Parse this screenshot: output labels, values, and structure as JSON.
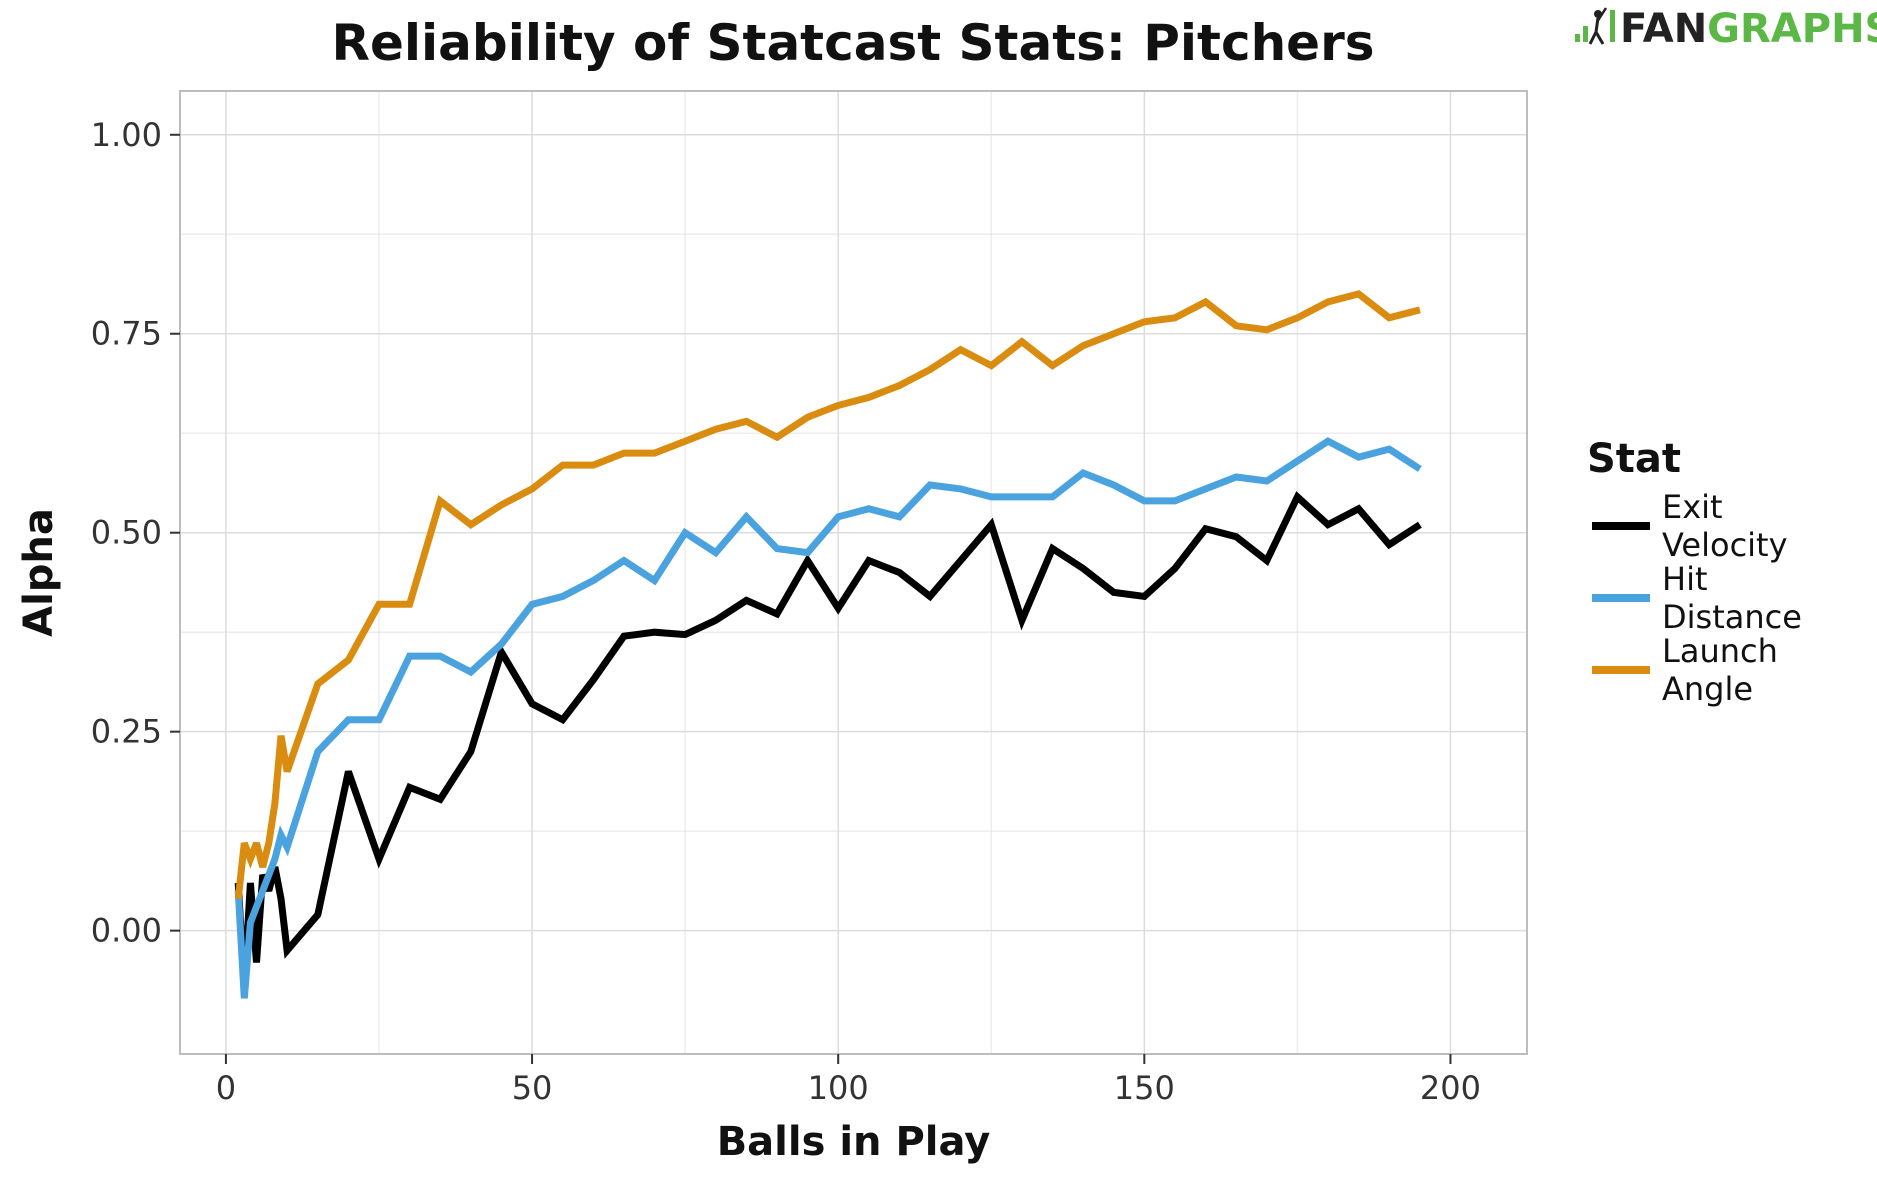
{
  "chart_data": {
    "type": "line",
    "title": "Reliability of Statcast Stats: Pitchers",
    "xlabel": "Balls in Play",
    "ylabel": "Alpha",
    "xlim": [
      -7.5,
      212.5
    ],
    "ylim": [
      -0.155,
      1.055
    ],
    "x_ticks": [
      0,
      50,
      100,
      150,
      200
    ],
    "x_tick_labels": [
      "0",
      "50",
      "100",
      "150",
      "200"
    ],
    "y_ticks": [
      0,
      0.25,
      0.5,
      0.75,
      1.0
    ],
    "y_tick_labels": [
      "0.00",
      "0.25",
      "0.50",
      "0.75",
      "1.00"
    ],
    "grid": true,
    "legend": {
      "title": "Stat",
      "position": "right",
      "entries": [
        {
          "lines": [
            "Exit",
            "Velocity"
          ],
          "color": "#000000"
        },
        {
          "lines": [
            "Hit",
            "Distance"
          ],
          "color": "#4aa3df"
        },
        {
          "lines": [
            "Launch",
            "Angle"
          ],
          "color": "#d98c0f"
        }
      ]
    },
    "x": [
      2,
      3,
      4,
      5,
      6,
      7,
      8,
      9,
      10,
      15,
      20,
      25,
      30,
      35,
      40,
      45,
      50,
      55,
      60,
      65,
      70,
      75,
      80,
      85,
      90,
      95,
      100,
      105,
      110,
      115,
      120,
      125,
      130,
      135,
      140,
      145,
      150,
      155,
      160,
      165,
      170,
      175,
      180,
      185,
      190,
      195
    ],
    "series": [
      {
        "name": "Exit Velocity",
        "color": "#000000",
        "values": [
          0.06,
          -0.07,
          0.06,
          -0.04,
          0.07,
          0.05,
          0.08,
          0.04,
          -0.025,
          0.02,
          0.2,
          0.09,
          0.18,
          0.165,
          0.225,
          0.35,
          0.285,
          0.265,
          0.315,
          0.37,
          0.375,
          0.372,
          0.39,
          0.415,
          0.398,
          0.465,
          0.405,
          0.465,
          0.45,
          0.42,
          0.465,
          0.51,
          0.39,
          0.48,
          0.455,
          0.425,
          0.42,
          0.455,
          0.505,
          0.495,
          0.465,
          0.545,
          0.51,
          0.53,
          0.485,
          0.51
        ]
      },
      {
        "name": "Hit Distance",
        "color": "#4aa3df",
        "values": [
          0.05,
          -0.085,
          0.01,
          0.03,
          0.05,
          0.07,
          0.09,
          0.12,
          0.105,
          0.225,
          0.265,
          0.265,
          0.345,
          0.345,
          0.325,
          0.36,
          0.41,
          0.42,
          0.44,
          0.465,
          0.44,
          0.5,
          0.475,
          0.52,
          0.48,
          0.475,
          0.52,
          0.53,
          0.52,
          0.56,
          0.555,
          0.545,
          0.545,
          0.545,
          0.575,
          0.56,
          0.54,
          0.54,
          0.555,
          0.57,
          0.565,
          0.59,
          0.615,
          0.595,
          0.605,
          0.58
        ]
      },
      {
        "name": "Launch Angle",
        "color": "#d98c0f",
        "values": [
          0.04,
          0.11,
          0.09,
          0.11,
          0.08,
          0.11,
          0.16,
          0.245,
          0.2,
          0.31,
          0.34,
          0.41,
          0.41,
          0.54,
          0.51,
          0.535,
          0.555,
          0.585,
          0.585,
          0.6,
          0.6,
          0.615,
          0.63,
          0.64,
          0.62,
          0.645,
          0.66,
          0.67,
          0.685,
          0.705,
          0.73,
          0.71,
          0.74,
          0.71,
          0.735,
          0.75,
          0.765,
          0.77,
          0.79,
          0.76,
          0.755,
          0.77,
          0.79,
          0.8,
          0.77,
          0.78
        ]
      }
    ]
  },
  "logo": {
    "text_fan": "FAN",
    "text_graphs": "GRAPHS",
    "color_dark": "#222222",
    "color_green": "#5bb847"
  }
}
